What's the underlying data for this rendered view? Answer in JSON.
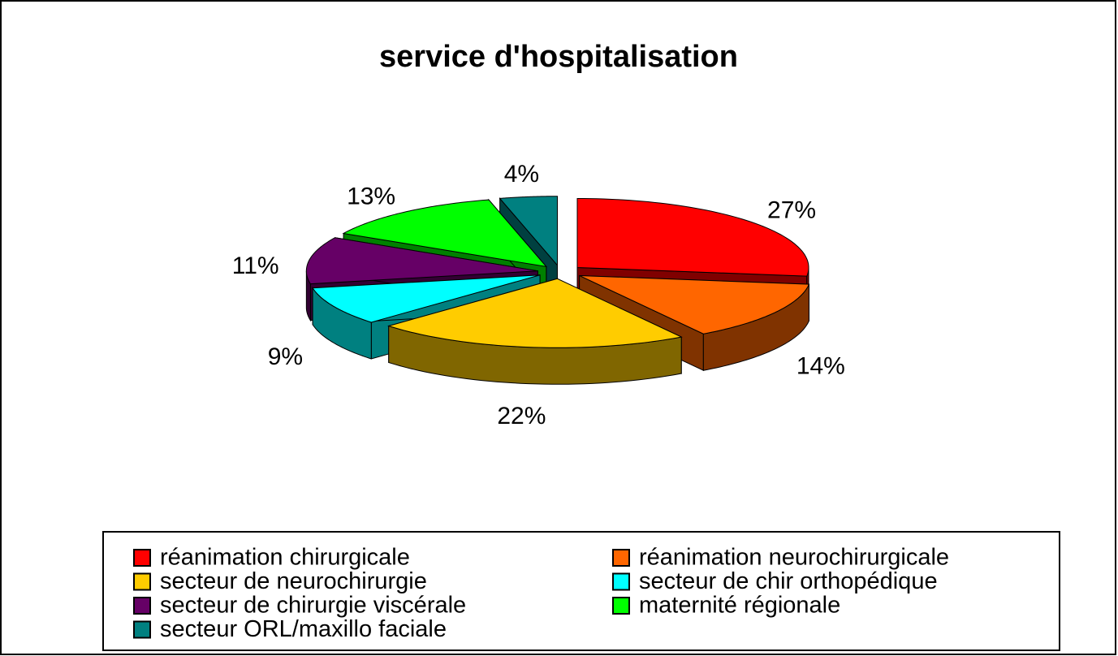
{
  "chart_data": {
    "type": "pie",
    "title": "service d'hospitalisation",
    "categories": [
      "réanimation chirurgicale",
      "réanimation neurochirurgicale",
      "secteur de neurochirurgie",
      "secteur de chir orthopédique",
      "secteur de chirurgie viscérale",
      "maternité régionale",
      "secteur ORL/maxillo faciale"
    ],
    "values": [
      27,
      14,
      22,
      9,
      11,
      13,
      4
    ],
    "value_labels": [
      "27%",
      "14%",
      "22%",
      "9%",
      "11%",
      "13%",
      "4%"
    ],
    "colors": [
      "#ff0000",
      "#ff6600",
      "#ffcc00",
      "#00ffff",
      "#660066",
      "#00ff00",
      "#008080"
    ],
    "legend": "bottom"
  }
}
